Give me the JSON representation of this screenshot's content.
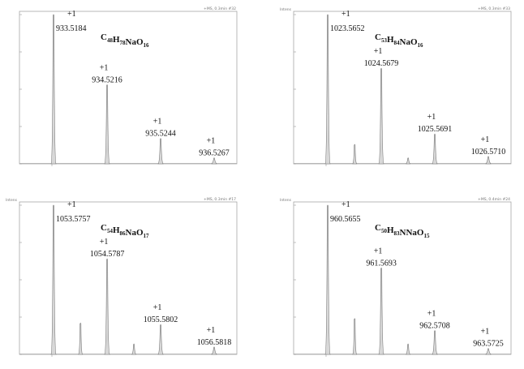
{
  "chart_data": [
    {
      "type": "line",
      "panel": "top-left",
      "formula": {
        "parts": [
          [
            "C",
            "48"
          ],
          [
            "H",
            "78"
          ],
          [
            "NaO",
            "16"
          ]
        ]
      },
      "header_left": "",
      "header_right": "+MS, 0.3min #32",
      "x_tick": "",
      "ylim": [
        0,
        1
      ],
      "major_peaks": [
        {
          "mz": 933.5184,
          "label": "933.5184",
          "charge": "+1",
          "rel": 1.0
        },
        {
          "mz": 934.5216,
          "label": "934.5216",
          "charge": "+1",
          "rel": 0.53
        },
        {
          "mz": 935.5244,
          "label": "935.5244",
          "charge": "+1",
          "rel": 0.17
        },
        {
          "mz": 936.5267,
          "label": "936.5267",
          "charge": "+1",
          "rel": 0.04
        }
      ],
      "minor_peaks": []
    },
    {
      "type": "line",
      "panel": "top-right",
      "formula": {
        "parts": [
          [
            "C",
            "53"
          ],
          [
            "H",
            "84"
          ],
          [
            "NaO",
            "16"
          ]
        ]
      },
      "header_left": "Intens",
      "header_right": "+MS, 0.3min #33",
      "x_tick": "",
      "ylim": [
        0,
        1
      ],
      "major_peaks": [
        {
          "mz": 1023.5652,
          "label": "1023.5652",
          "charge": "+1",
          "rel": 1.0
        },
        {
          "mz": 1024.5679,
          "label": "1024.5679",
          "charge": "+1",
          "rel": 0.64
        },
        {
          "mz": 1025.5691,
          "label": "1025.5691",
          "charge": "+1",
          "rel": 0.2
        },
        {
          "mz": 1026.571,
          "label": "1026.5710",
          "charge": "+1",
          "rel": 0.05
        }
      ],
      "minor_peaks": [
        {
          "mz": 1024.07,
          "rel": 0.13
        },
        {
          "mz": 1025.07,
          "rel": 0.04
        }
      ]
    },
    {
      "type": "line",
      "panel": "bottom-left",
      "formula": {
        "parts": [
          [
            "C",
            "54"
          ],
          [
            "H",
            "86"
          ],
          [
            "NaO",
            "17"
          ]
        ]
      },
      "header_left": "Intens",
      "header_right": "+MS, 0.3min #17",
      "x_tick": "",
      "ylim": [
        0,
        1
      ],
      "major_peaks": [
        {
          "mz": 1053.5757,
          "label": "1053.5757",
          "charge": "+1",
          "rel": 1.0
        },
        {
          "mz": 1054.5787,
          "label": "1054.5787",
          "charge": "+1",
          "rel": 0.64
        },
        {
          "mz": 1055.5802,
          "label": "1055.5802",
          "charge": "+1",
          "rel": 0.2
        },
        {
          "mz": 1056.5818,
          "label": "1056.5818",
          "charge": "+1",
          "rel": 0.05
        }
      ],
      "minor_peaks": [
        {
          "mz": 1054.08,
          "rel": 0.21
        },
        {
          "mz": 1055.08,
          "rel": 0.07
        }
      ]
    },
    {
      "type": "line",
      "panel": "bottom-right",
      "formula": {
        "parts": [
          [
            "C",
            "50"
          ],
          [
            "H",
            "83"
          ],
          [
            "NNaO",
            "15"
          ]
        ]
      },
      "header_left": "Intens",
      "header_right": "+MS, 0.4min #24",
      "x_tick": "",
      "ylim": [
        0,
        1
      ],
      "major_peaks": [
        {
          "mz": 960.5655,
          "label": "960.5655",
          "charge": "+1",
          "rel": 1.0
        },
        {
          "mz": 961.5693,
          "label": "961.5693",
          "charge": "+1",
          "rel": 0.58
        },
        {
          "mz": 962.5708,
          "label": "962.5708",
          "charge": "+1",
          "rel": 0.16
        },
        {
          "mz": 963.5725,
          "label": "963.5725",
          "charge": "+1",
          "rel": 0.04
        }
      ],
      "minor_peaks": [
        {
          "mz": 961.07,
          "rel": 0.24
        },
        {
          "mz": 962.07,
          "rel": 0.07
        }
      ]
    }
  ]
}
